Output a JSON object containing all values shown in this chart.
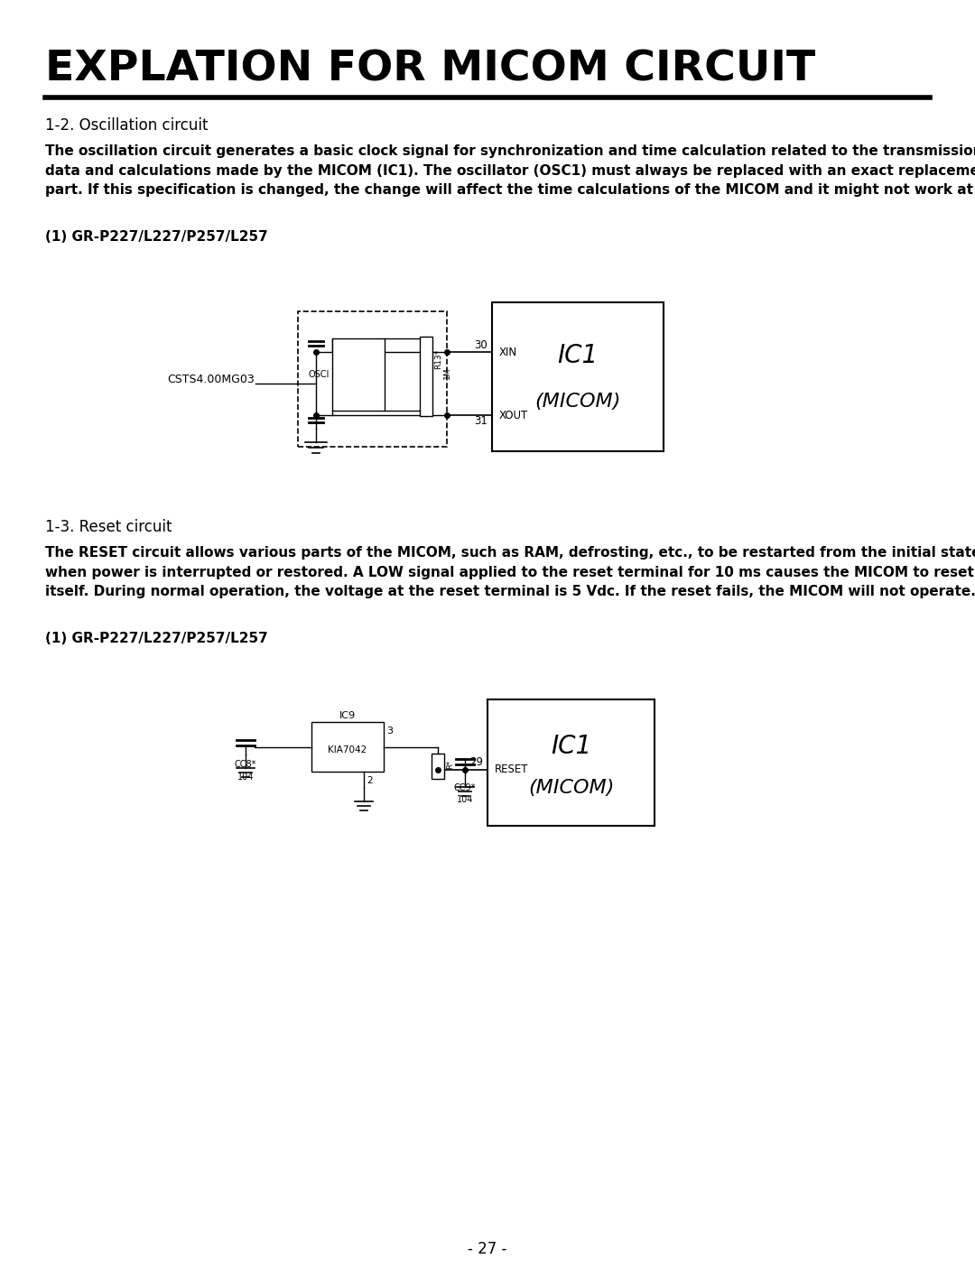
{
  "bg_color": "#ffffff",
  "title": "EXPLATION FOR MICOM CIRCUIT",
  "section1_heading": "1-2. Oscillation circuit",
  "section1_body": "The oscillation circuit generates a basic clock signal for synchronization and time calculation related to the transmission of\ndata and calculations made by the MICOM (IC1). The oscillator (OSC1) must always be replaced with an exact replacement\npart. If this specification is changed, the change will affect the time calculations of the MICOM and it might not work at all.",
  "section1_sub": "(1) GR-P227/L227/P257/L257",
  "section2_heading": "1-3. Reset circuit",
  "section2_body": "The RESET circuit allows various parts of the MICOM, such as RAM, defrosting, etc., to be restarted from the initial state\nwhen power is interrupted or restored. A LOW signal applied to the reset terminal for 10 ms causes the MICOM to reset\nitself. During normal operation, the voltage at the reset terminal is 5 Vdc. If the reset fails, the MICOM will not operate.",
  "section2_sub": "(1) GR-P227/L227/P257/L257",
  "page_number": "- 27 -"
}
